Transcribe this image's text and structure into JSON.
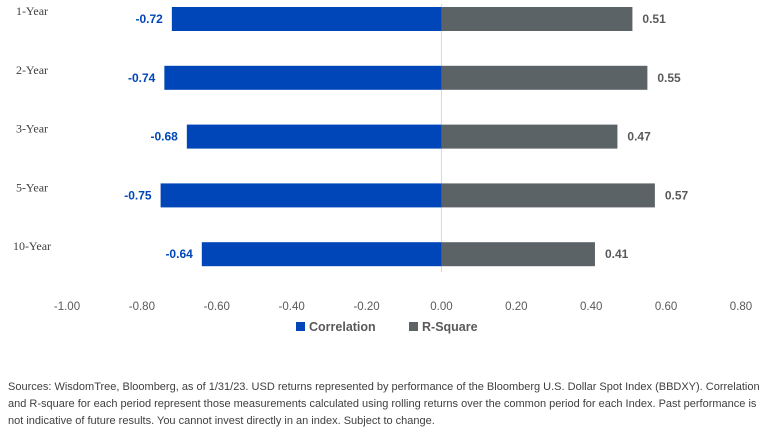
{
  "chart_data": {
    "type": "bar",
    "orientation": "horizontal",
    "categories": [
      "1-Year",
      "2-Year",
      "3-Year",
      "5-Year",
      "10-Year"
    ],
    "series": [
      {
        "name": "Correlation",
        "values": [
          -0.72,
          -0.74,
          -0.68,
          -0.75,
          -0.64
        ],
        "labels": [
          "-0.72",
          "-0.74",
          "-0.68",
          "-0.75",
          "-0.64"
        ],
        "color": "#0046b8"
      },
      {
        "name": "R-Square",
        "values": [
          0.51,
          0.55,
          0.47,
          0.57,
          0.41
        ],
        "labels": [
          "0.51",
          "0.55",
          "0.47",
          "0.57",
          "0.41"
        ],
        "color": "#5c6367"
      }
    ],
    "xlim": [
      -1.0,
      0.8
    ],
    "xticks": [
      "-1.00",
      "-0.80",
      "-0.60",
      "-0.40",
      "-0.20",
      "0.00",
      "0.20",
      "0.40",
      "0.60",
      "0.80"
    ],
    "grid": false,
    "legend_position": "bottom"
  },
  "footnote": "Sources: WisdomTree, Bloomberg, as of 1/31/23. USD returns represented by performance of the Bloomberg U.S. Dollar Spot Index (BBDXY). Correlation and R-square for each period represent those measurements calculated using rolling returns over the common period for each Index. Past performance is not indicative of future results. You cannot invest directly in an index. Subject to change."
}
